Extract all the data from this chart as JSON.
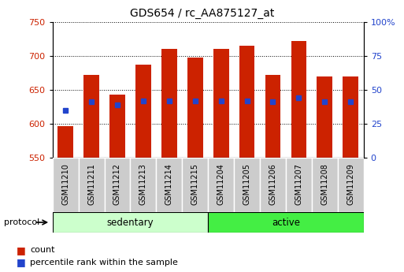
{
  "title": "GDS654 / rc_AA875127_at",
  "samples": [
    "GSM11210",
    "GSM11211",
    "GSM11212",
    "GSM11213",
    "GSM11214",
    "GSM11215",
    "GSM11204",
    "GSM11205",
    "GSM11206",
    "GSM11207",
    "GSM11208",
    "GSM11209"
  ],
  "bar_tops": [
    597,
    672,
    643,
    687,
    710,
    697,
    710,
    715,
    672,
    722,
    670,
    670
  ],
  "bar_bottom": 550,
  "blue_y": [
    620,
    633,
    628,
    634,
    634,
    634,
    634,
    634,
    633,
    638,
    633,
    633
  ],
  "ylim_left": [
    550,
    750
  ],
  "ylim_right": [
    0,
    100
  ],
  "yticks_left": [
    550,
    600,
    650,
    700,
    750
  ],
  "yticks_right": [
    0,
    25,
    50,
    75,
    100
  ],
  "bar_color": "#cc2200",
  "blue_color": "#2244cc",
  "group_sedentary": [
    0,
    1,
    2,
    3,
    4,
    5
  ],
  "group_active": [
    6,
    7,
    8,
    9,
    10,
    11
  ],
  "sedentary_color": "#ccffcc",
  "active_color": "#44ee44",
  "protocol_label": "protocol",
  "sedentary_label": "sedentary",
  "active_label": "active",
  "legend_count": "count",
  "legend_percentile": "percentile rank within the sample",
  "bar_width": 0.6,
  "blue_size": 4,
  "tick_label_bg": "#cccccc",
  "tick_label_fontsize": 7,
  "figwidth": 5.13,
  "figheight": 3.45,
  "dpi": 100
}
